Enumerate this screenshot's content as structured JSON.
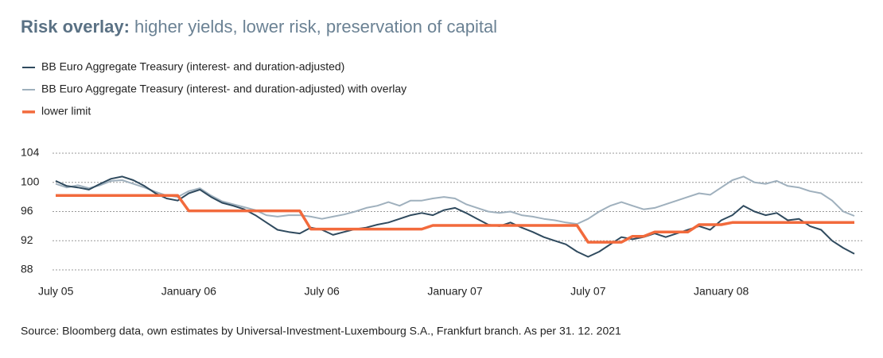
{
  "chart_data": {
    "type": "line",
    "title": {
      "lead": "Risk overlay:",
      "rest": "higher yields, lower risk, preservation of capital"
    },
    "source": "Source: Bloomberg data, own estimates by Universal-Investment-Luxembourg S.A., Frankfurt branch. As per 31. 12. 2021",
    "categories": [
      "July 05",
      null,
      null,
      null,
      null,
      null,
      null,
      null,
      null,
      null,
      null,
      null,
      "January 06",
      null,
      null,
      null,
      null,
      null,
      null,
      null,
      null,
      null,
      null,
      null,
      "July 06",
      null,
      null,
      null,
      null,
      null,
      null,
      null,
      null,
      null,
      null,
      null,
      "January 07",
      null,
      null,
      null,
      null,
      null,
      null,
      null,
      null,
      null,
      null,
      null,
      "July 07",
      null,
      null,
      null,
      null,
      null,
      null,
      null,
      null,
      null,
      null,
      null,
      "January 08",
      null,
      null,
      null,
      null,
      null,
      null,
      null,
      null,
      null,
      null,
      null,
      null
    ],
    "series": [
      {
        "name": "BB Euro Aggregate Treasury (interest- and duration-adjusted)",
        "color": "#2f4a5e",
        "width": 2,
        "values": [
          100.2,
          99.5,
          99.3,
          99,
          99.8,
          100.5,
          100.8,
          100.3,
          99.5,
          98.5,
          97.8,
          97.5,
          98.5,
          99,
          98,
          97.2,
          96.8,
          96.3,
          95.5,
          94.5,
          93.5,
          93.2,
          93,
          93.8,
          93.5,
          92.8,
          93.2,
          93.6,
          93.8,
          94.2,
          94.5,
          95,
          95.5,
          95.8,
          95.5,
          96.2,
          96.5,
          95.8,
          95,
          94.2,
          94,
          94.5,
          93.8,
          93.2,
          92.5,
          92,
          91.5,
          90.5,
          89.8,
          90.5,
          91.5,
          92.5,
          92.2,
          92.5,
          93,
          92.5,
          93,
          93.5,
          94,
          93.5,
          94.8,
          95.5,
          96.8,
          96,
          95.5,
          95.8,
          94.8,
          95,
          94,
          93.5,
          92,
          91,
          90.2
        ]
      },
      {
        "name": "BB Euro Aggregate Treasury (interest- and duration-adjusted) with overlay",
        "color": "#9fb0bd",
        "width": 2,
        "values": [
          99.8,
          99.3,
          99.6,
          99.2,
          99.6,
          100.2,
          100.3,
          99.8,
          99.3,
          98.7,
          98.2,
          98,
          98.8,
          99.2,
          98.2,
          97.4,
          97,
          96.6,
          96.2,
          95.5,
          95.3,
          95.5,
          95.5,
          95.3,
          95,
          95.3,
          95.6,
          96,
          96.5,
          96.8,
          97.3,
          96.8,
          97.5,
          97.5,
          97.8,
          98,
          97.8,
          97,
          96.5,
          96,
          95.8,
          96,
          95.5,
          95.3,
          95,
          94.8,
          94.5,
          94.3,
          95,
          96,
          96.8,
          97.3,
          96.8,
          96.3,
          96.5,
          97,
          97.5,
          98,
          98.5,
          98.3,
          99.3,
          100.3,
          100.8,
          100,
          99.8,
          100.2,
          99.5,
          99.3,
          98.8,
          98.5,
          97.5,
          96,
          95.4
        ]
      },
      {
        "name": "lower limit",
        "color": "#f26a3c",
        "width": 3.5,
        "values": [
          98.2,
          98.2,
          98.2,
          98.2,
          98.2,
          98.2,
          98.2,
          98.2,
          98.2,
          98.2,
          98.2,
          98.2,
          96.1,
          96.1,
          96.1,
          96.1,
          96.1,
          96.1,
          96.1,
          96.1,
          96.1,
          96.1,
          96.1,
          93.6,
          93.6,
          93.6,
          93.6,
          93.6,
          93.6,
          93.6,
          93.6,
          93.6,
          93.6,
          93.6,
          94.1,
          94.1,
          94.1,
          94.1,
          94.1,
          94.1,
          94.1,
          94.1,
          94.1,
          94.1,
          94.1,
          94.1,
          94.1,
          94.1,
          91.8,
          91.8,
          91.8,
          91.8,
          92.6,
          92.6,
          93.2,
          93.2,
          93.2,
          93.2,
          94.2,
          94.2,
          94.2,
          94.5,
          94.5,
          94.5,
          94.5,
          94.5,
          94.5,
          94.5,
          94.5,
          94.5,
          94.5,
          94.5,
          94.5
        ]
      }
    ],
    "ylim": [
      88,
      104
    ],
    "yticks": [
      88,
      92,
      96,
      100,
      104
    ],
    "grid": true
  }
}
